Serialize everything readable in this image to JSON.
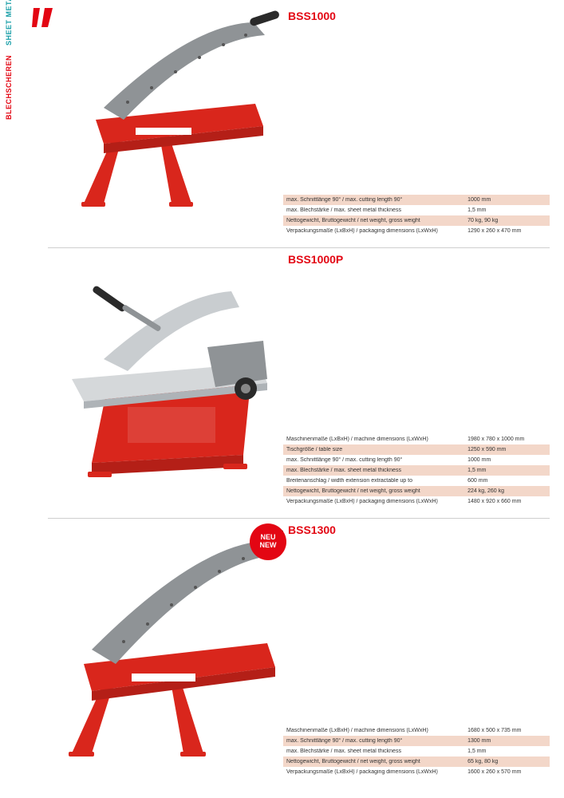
{
  "sideLabel": {
    "de": "BLECHSCHEREN",
    "en": "SHEET METAL SHEARS"
  },
  "brand_color": "#e30613",
  "accent_color": "#1a9fa8",
  "row_alt_color": "#f3d7c9",
  "badge": {
    "line1": "NEU",
    "line2": "NEW"
  },
  "products": [
    {
      "model": "BSS1000",
      "specs": [
        {
          "label": "max. Schnittlänge 90° / max. cutting length 90°",
          "value": "1000 mm",
          "alt": true
        },
        {
          "label": "max. Blechstärke / max. sheet metal thickness",
          "value": "1,5 mm",
          "alt": false
        },
        {
          "label": "Nettogewicht, Bruttogewicht / net weight, gross weight",
          "value": "70 kg, 90 kg",
          "alt": true
        },
        {
          "label": "Verpackungsmaße (LxBxH) / packaging dimensions (LxWxH)",
          "value": "1290 x 260 x 470 mm",
          "alt": false
        }
      ]
    },
    {
      "model": "BSS1000P",
      "specs": [
        {
          "label": "Maschinenmaße (LxBxH) / machine dimensions (LxWxH)",
          "value": "1980 x 780 x 1000 mm",
          "alt": false
        },
        {
          "label": "Tischgröße / table size",
          "value": "1250 x 590 mm",
          "alt": true
        },
        {
          "label": "max. Schnittlänge 90° / max. cutting length 90°",
          "value": "1000 mm",
          "alt": false
        },
        {
          "label": "max. Blechstärke / max. sheet metal thickness",
          "value": "1,5 mm",
          "alt": true
        },
        {
          "label": "Breitenanschlag / width extension extractable up to",
          "value": "600 mm",
          "alt": false
        },
        {
          "label": "Nettogewicht, Bruttogewicht / net weight, gross weight",
          "value": "224 kg, 260 kg",
          "alt": true
        },
        {
          "label": "Verpackungsmaße (LxBxH) / packaging dimensions (LxWxH)",
          "value": "1480 x 920 x 660 mm",
          "alt": false
        }
      ]
    },
    {
      "model": "BSS1300",
      "specs": [
        {
          "label": "Maschinenmaße (LxBxH) / machine dimensions (LxWxH)",
          "value": "1680 x 500 x 735 mm",
          "alt": false
        },
        {
          "label": "max. Schnittlänge 90° / max. cutting length 90°",
          "value": "1300 mm",
          "alt": true
        },
        {
          "label": "max. Blechstärke / max. sheet metal thickness",
          "value": "1,5 mm",
          "alt": false
        },
        {
          "label": "Nettogewicht, Bruttogewicht / net weight, gross weight",
          "value": "65 kg, 80 kg",
          "alt": true
        },
        {
          "label": "Verpackungsmaße (LxBxH) / packaging dimensions (LxWxH)",
          "value": "1600 x 260 x 570 mm",
          "alt": false
        }
      ]
    }
  ]
}
